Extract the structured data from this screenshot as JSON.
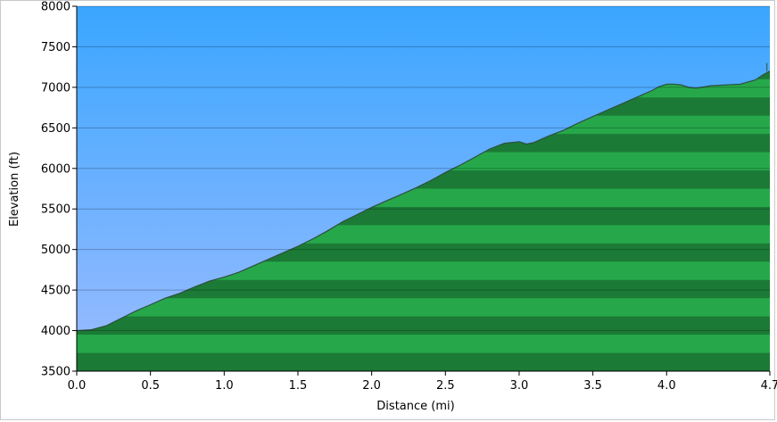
{
  "chart_data": {
    "type": "area",
    "xlabel": "Distance",
    "xunit": "(mi)",
    "ylabel": "Elevation",
    "yunit": "(ft)",
    "xlim": [
      0,
      4.7
    ],
    "ylim": [
      3500,
      8000
    ],
    "x_ticks": [
      "0.0",
      "0.5",
      "1.0",
      "1.5",
      "2.0",
      "2.5",
      "3.0",
      "3.5",
      "4.0",
      "4.7"
    ],
    "x_tick_values": [
      0,
      0.5,
      1.0,
      1.5,
      2.0,
      2.5,
      3.0,
      3.5,
      4.0,
      4.7
    ],
    "y_ticks": [
      "3500",
      "4000",
      "4500",
      "5000",
      "5500",
      "6000",
      "6500",
      "7000",
      "7500",
      "8000"
    ],
    "y_tick_values": [
      3500,
      4000,
      4500,
      5000,
      5500,
      6000,
      6500,
      7000,
      7500,
      8000
    ],
    "grid": true,
    "colors": {
      "sky_top": "#3aa6ff",
      "sky_bottom": "#9cbcff",
      "terrain_light": "#26a84a",
      "terrain_dark": "#1b7a35",
      "outline": "#2f4f3f"
    },
    "series": [
      {
        "x": [
          0.0,
          0.1,
          0.2,
          0.3,
          0.4,
          0.5,
          0.6,
          0.7,
          0.8,
          0.9,
          1.0,
          1.1,
          1.2,
          1.3,
          1.4,
          1.5,
          1.6,
          1.7,
          1.8,
          1.9,
          2.0,
          2.1,
          2.2,
          2.3,
          2.4,
          2.5,
          2.6,
          2.7,
          2.8,
          2.9,
          3.0,
          3.05,
          3.1,
          3.2,
          3.3,
          3.4,
          3.5,
          3.6,
          3.7,
          3.8,
          3.9,
          3.95,
          4.0,
          4.05,
          4.1,
          4.15,
          4.2,
          4.3,
          4.4,
          4.5,
          4.6,
          4.65,
          4.7
        ],
        "y": [
          4000,
          4010,
          4060,
          4150,
          4240,
          4320,
          4400,
          4460,
          4540,
          4610,
          4660,
          4720,
          4800,
          4880,
          4960,
          5040,
          5130,
          5230,
          5340,
          5430,
          5520,
          5600,
          5680,
          5760,
          5850,
          5950,
          6040,
          6140,
          6240,
          6310,
          6330,
          6300,
          6320,
          6400,
          6470,
          6560,
          6640,
          6720,
          6800,
          6880,
          6960,
          7010,
          7040,
          7040,
          7030,
          7000,
          6990,
          7020,
          7030,
          7040,
          7090,
          7150,
          7200
        ]
      }
    ]
  }
}
